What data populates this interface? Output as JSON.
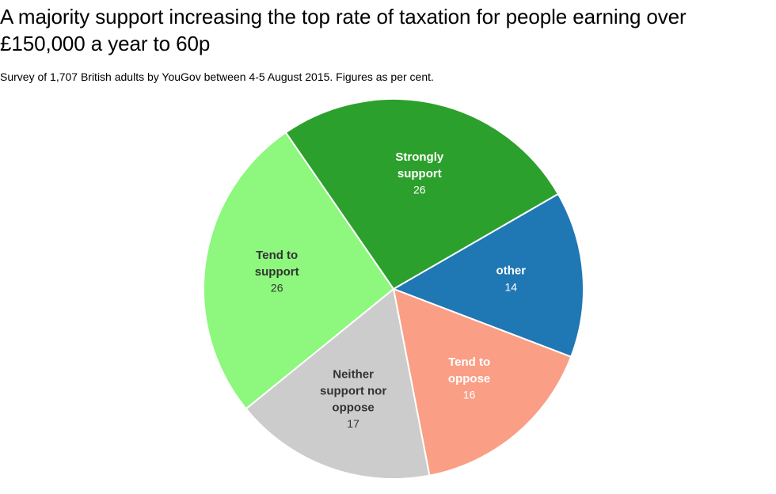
{
  "chart_data": {
    "type": "pie",
    "title": "A majority support increasing the top rate of taxation for people earning over £150,000 a year to 60p",
    "subtitle": "Survey of 1,707 British adults by YouGov between 4-5 August 2015. Figures as per cent.",
    "slices": [
      {
        "label": "other",
        "label_lines": [
          "other"
        ],
        "value": 14,
        "color": "#1f77b4",
        "text_color": "#ffffff"
      },
      {
        "label": "Tend to oppose",
        "label_lines": [
          "Tend to",
          "oppose"
        ],
        "value": 16,
        "color": "#fa9e86",
        "text_color": "#ffffff"
      },
      {
        "label": "Neither support nor oppose",
        "label_lines": [
          "Neither",
          "support nor",
          "oppose"
        ],
        "value": 17,
        "color": "#cccccc",
        "text_color": "#333333"
      },
      {
        "label": "Tend to support",
        "label_lines": [
          "Tend to",
          "support"
        ],
        "value": 26,
        "color": "#8df77e",
        "text_color": "#333333"
      },
      {
        "label": "Strongly support",
        "label_lines": [
          "Strongly",
          "support"
        ],
        "value": 26,
        "color": "#2ca02c",
        "text_color": "#ffffff"
      }
    ]
  }
}
